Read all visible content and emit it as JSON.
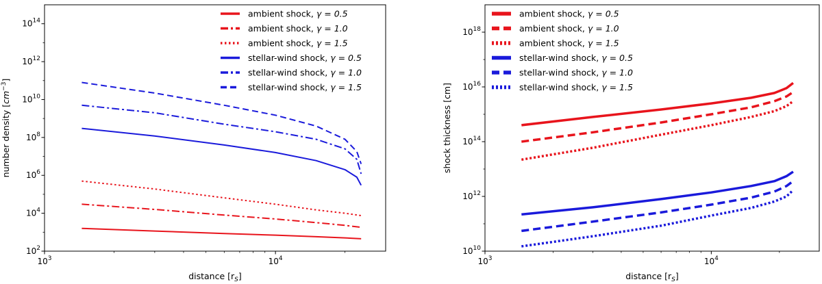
{
  "chart_data": [
    {
      "type": "line",
      "xlabel": "distance [$r_S$]",
      "xlabel_text": "distance [r",
      "xlabel_sub": "S",
      "xlabel_end": "]",
      "ylabel_text": "number density [",
      "ylabel_unit": "cm",
      "ylabel_exp": "−3",
      "ylabel_end": "]",
      "x_scale": "log",
      "y_scale": "log",
      "xlim": [
        1000,
        30000
      ],
      "ylim": [
        100,
        1000000000000000.0
      ],
      "x_ticks": [
        {
          "value": 1000,
          "base": "10",
          "exp": "3"
        },
        {
          "value": 10000,
          "base": "10",
          "exp": "4"
        }
      ],
      "y_ticks": [
        {
          "value": 100,
          "base": "10",
          "exp": "2"
        },
        {
          "value": 10000,
          "base": "10",
          "exp": "4"
        },
        {
          "value": 1000000.0,
          "base": "10",
          "exp": "6"
        },
        {
          "value": 100000000.0,
          "base": "10",
          "exp": "8"
        },
        {
          "value": 10000000000.0,
          "base": "10",
          "exp": "10"
        },
        {
          "value": 1000000000000.0,
          "base": "10",
          "exp": "12"
        },
        {
          "value": 100000000000000.0,
          "base": "10",
          "exp": "14"
        }
      ],
      "legend_position": "top-right",
      "series": [
        {
          "label": "ambient shock, ",
          "gamma": "γ = 0.5",
          "color": "#e8141c",
          "style": "solid",
          "x": [
            1450,
            3000,
            6000,
            10000,
            15000,
            20000,
            23500
          ],
          "y": [
            1600,
            1150,
            850,
            700,
            580,
            500,
            450
          ]
        },
        {
          "label": "ambient shock, ",
          "gamma": "γ = 1.0",
          "color": "#e8141c",
          "style": "dashdot",
          "x": [
            1450,
            3000,
            6000,
            10000,
            15000,
            20000,
            23500
          ],
          "y": [
            30000,
            16000,
            8000,
            5000,
            3200,
            2300,
            1800
          ]
        },
        {
          "label": "ambient shock, ",
          "gamma": "γ = 1.5",
          "color": "#e8141c",
          "style": "dotted",
          "x": [
            1450,
            3000,
            6000,
            10000,
            15000,
            20000,
            23500
          ],
          "y": [
            500000,
            190000,
            65000,
            30000,
            15000,
            10000,
            7500
          ]
        },
        {
          "label": "stellar-wind shock, ",
          "gamma": "γ = 0.5",
          "color": "#1a1adb",
          "style": "solid",
          "x": [
            1450,
            3000,
            6000,
            10000,
            15000,
            20000,
            22500,
            23500
          ],
          "y": [
            300000000.0,
            120000000.0,
            40000000.0,
            16000000.0,
            6000000.0,
            2000000.0,
            800000.0,
            300000.0
          ]
        },
        {
          "label": "stellar-wind shock, ",
          "gamma": "γ = 1.0",
          "color": "#1a1adb",
          "style": "dashdot",
          "x": [
            1450,
            3000,
            6000,
            10000,
            15000,
            20000,
            22500,
            23500
          ],
          "y": [
            5000000000.0,
            2000000000.0,
            500000000.0,
            200000000.0,
            80000000.0,
            25000000.0,
            7000000.0,
            1200000.0
          ]
        },
        {
          "label": "stellar-wind shock, ",
          "gamma": "γ = 1.5",
          "color": "#1a1adb",
          "style": "dashed",
          "x": [
            1450,
            3000,
            6000,
            10000,
            15000,
            20000,
            22500,
            23500
          ],
          "y": [
            80000000000.0,
            22000000000.0,
            5000000000.0,
            1500000000.0,
            400000000.0,
            80000000.0,
            18000000.0,
            4000000.0
          ]
        }
      ]
    },
    {
      "type": "line",
      "xlabel": "distance [$r_S$]",
      "xlabel_text": "distance [r",
      "xlabel_sub": "S",
      "xlabel_end": "]",
      "ylabel_text": "shock thickness [cm]",
      "x_scale": "log",
      "y_scale": "log",
      "xlim": [
        1000,
        30000
      ],
      "ylim": [
        10000000000.0,
        1e+19
      ],
      "x_ticks": [
        {
          "value": 1000,
          "base": "10",
          "exp": "3"
        },
        {
          "value": 10000,
          "base": "10",
          "exp": "4"
        }
      ],
      "y_ticks": [
        {
          "value": 10000000000.0,
          "base": "10",
          "exp": "10"
        },
        {
          "value": 1000000000000.0,
          "base": "10",
          "exp": "12"
        },
        {
          "value": 100000000000000.0,
          "base": "10",
          "exp": "14"
        },
        {
          "value": 1e+16,
          "base": "10",
          "exp": "16"
        },
        {
          "value": 1e+18,
          "base": "10",
          "exp": "18"
        }
      ],
      "legend_position": "top-left",
      "series": [
        {
          "label": "ambient shock, ",
          "gamma": "γ = 0.5",
          "color": "#e8141c",
          "style": "solid",
          "x": [
            1450,
            3000,
            6000,
            10000,
            15000,
            19000,
            21500,
            23000
          ],
          "y": [
            400000000000000.0,
            800000000000000.0,
            1500000000000000.0,
            2500000000000000.0,
            4000000000000000.0,
            6000000000000000.0,
            9000000000000000.0,
            1.4e+16
          ]
        },
        {
          "label": "ambient shock, ",
          "gamma": "γ = 1.0",
          "color": "#e8141c",
          "style": "dashed",
          "x": [
            1450,
            3000,
            6000,
            10000,
            15000,
            19000,
            21500,
            23000
          ],
          "y": [
            100000000000000.0,
            220000000000000.0,
            500000000000000.0,
            1000000000000000.0,
            1800000000000000.0,
            3000000000000000.0,
            4500000000000000.0,
            6500000000000000.0
          ]
        },
        {
          "label": "ambient shock, ",
          "gamma": "γ = 1.5",
          "color": "#e8141c",
          "style": "dotted",
          "x": [
            1450,
            3000,
            6000,
            10000,
            15000,
            19000,
            21500,
            23000
          ],
          "y": [
            22000000000000.0,
            60000000000000.0,
            180000000000000.0,
            400000000000000.0,
            800000000000000.0,
            1300000000000000.0,
            2000000000000000.0,
            3000000000000000.0
          ]
        },
        {
          "label": "stellar-wind shock, ",
          "gamma": "γ = 0.5",
          "color": "#1a1adb",
          "style": "solid",
          "x": [
            1450,
            3000,
            6000,
            10000,
            15000,
            19000,
            21500,
            23000
          ],
          "y": [
            220000000000.0,
            400000000000.0,
            800000000000.0,
            1400000000000.0,
            2400000000000.0,
            3600000000000.0,
            5500000000000.0,
            8000000000000.0
          ]
        },
        {
          "label": "stellar-wind shock, ",
          "gamma": "γ = 1.0",
          "color": "#1a1adb",
          "style": "dashed",
          "x": [
            1450,
            3000,
            6000,
            10000,
            15000,
            19000,
            21500,
            23000
          ],
          "y": [
            55000000000.0,
            120000000000.0,
            260000000000.0,
            500000000000.0,
            900000000000.0,
            1500000000000.0,
            2400000000000.0,
            3600000000000.0
          ]
        },
        {
          "label": "stellar-wind shock, ",
          "gamma": "γ = 1.5",
          "color": "#1a1adb",
          "style": "dotted",
          "x": [
            1450,
            3000,
            6000,
            10000,
            15000,
            19000,
            21500,
            23000
          ],
          "y": [
            15000000000.0,
            35000000000.0,
            85000000000.0,
            200000000000.0,
            380000000000.0,
            650000000000.0,
            1000000000000.0,
            1700000000000.0
          ]
        }
      ]
    }
  ]
}
